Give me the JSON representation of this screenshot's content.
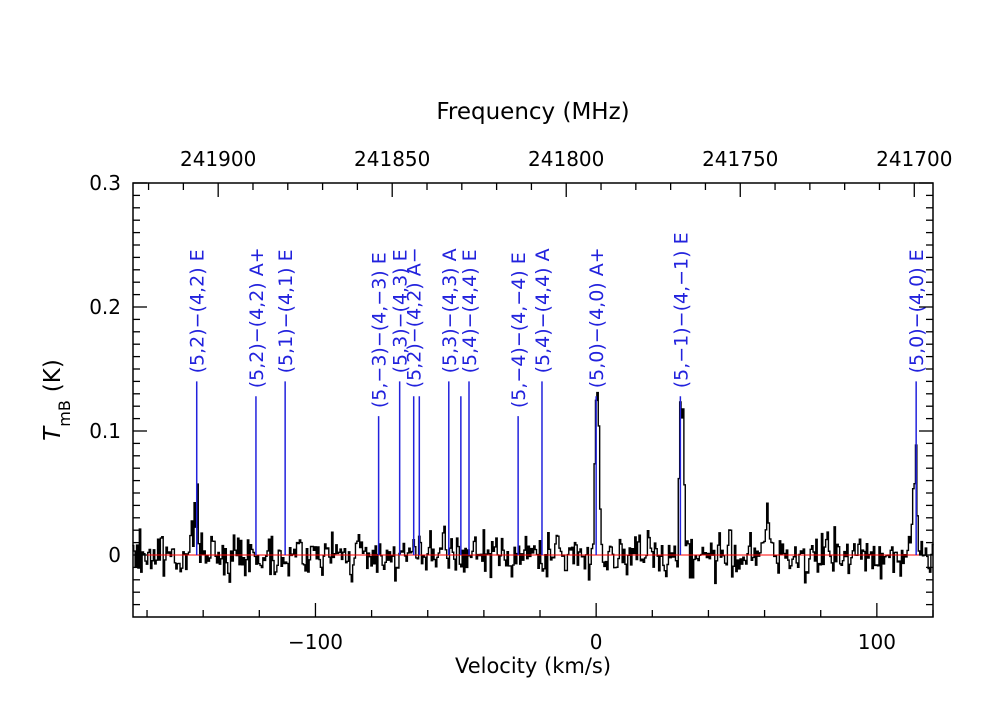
{
  "chart_data": {
    "type": "line",
    "xlabel": "Velocity (km/s)",
    "ylabel_main": "T",
    "ylabel_sub": "mB",
    "ylabel_unit": "(K)",
    "top_axis_label": "Frequency (MHz)",
    "xlim": [
      -165,
      120
    ],
    "ylim": [
      -0.05,
      0.3
    ],
    "xticks": [
      {
        "value": -100,
        "label": "−100"
      },
      {
        "value": 0,
        "label": "0"
      },
      {
        "value": 100,
        "label": "100"
      }
    ],
    "yticks": [
      {
        "value": 0,
        "label": "0"
      },
      {
        "value": 0.1,
        "label": "0.1"
      },
      {
        "value": 0.2,
        "label": "0.2"
      },
      {
        "value": 0.3,
        "label": "0.3"
      }
    ],
    "top_ticks": [
      {
        "value": 241900,
        "label": "241900"
      },
      {
        "value": 241850,
        "label": "241850"
      },
      {
        "value": 241800,
        "label": "241800"
      },
      {
        "value": 241750,
        "label": "241750"
      },
      {
        "value": 241700,
        "label": "241700"
      }
    ],
    "top_axis_reference": {
      "frequency_at_zero_velocity": 241791.4,
      "mhz_per_kms": -0.8065
    },
    "baseline": 0,
    "transitions": [
      {
        "label": "(5,2)−(4,2) E",
        "velocity": -142.3,
        "height": 0.14
      },
      {
        "label": "(5,2)−(4,2) A+",
        "velocity": -121.2,
        "height": 0.128
      },
      {
        "label": "(5,1)−(4,1) E",
        "velocity": -110.8,
        "height": 0.14
      },
      {
        "label": "(5,−3)−(4,−3) E",
        "velocity": -77.5,
        "height": 0.112
      },
      {
        "label": "(5,3)−(4,3) E",
        "velocity": -70.0,
        "height": 0.14
      },
      {
        "label": "(5,2)−(4,2) A−",
        "velocity": -65.0,
        "height": 0.128
      },
      {
        "label": "",
        "velocity": -63.0,
        "height": 0.128
      },
      {
        "label": "(5,3)−(4,3) A",
        "velocity": -52.5,
        "height": 0.14
      },
      {
        "label": "",
        "velocity": -48.2,
        "height": 0.128
      },
      {
        "label": "(5,4)−(4,4) E",
        "velocity": -45.3,
        "height": 0.14
      },
      {
        "label": "(5,−4)−(4,−4) E",
        "velocity": -27.8,
        "height": 0.112
      },
      {
        "label": "(5,4)−(4,4) A",
        "velocity": -19.3,
        "height": 0.14
      },
      {
        "label": "(5,0)−(4,0) A+",
        "velocity": 0.0,
        "height": 0.128
      },
      {
        "label": "(5,−1)−(4,−1) E",
        "velocity": 30.0,
        "height": 0.128
      },
      {
        "label": "(5,0)−(4,0) E",
        "velocity": 114.0,
        "height": 0.14
      }
    ],
    "series": [
      {
        "peaks": [
          {
            "velocity": -143.0,
            "value": 0.038
          },
          {
            "velocity": -142.0,
            "value": 0.04
          },
          {
            "velocity": 0.0,
            "value": 0.132
          },
          {
            "velocity": 1.0,
            "value": 0.1
          },
          {
            "velocity": 30.0,
            "value": 0.12
          },
          {
            "velocity": 31.0,
            "value": 0.105
          },
          {
            "velocity": 61.0,
            "value": 0.048
          },
          {
            "velocity": 114.0,
            "value": 0.08
          },
          {
            "velocity": 113.0,
            "value": 0.045
          }
        ],
        "noise_rms": 0.012,
        "channel_width": 0.5
      }
    ],
    "colors": {
      "spectrum": "#000000",
      "baseline": "#ff0000",
      "transitions": "#2222dd"
    }
  }
}
